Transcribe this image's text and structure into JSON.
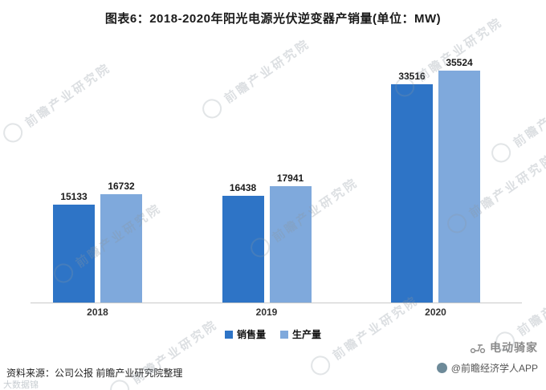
{
  "title": "图表6：2018-2020年阳光电源光伏逆变器产销量(单位：MW)",
  "chart_data": {
    "type": "bar",
    "title": "图表6：2018-2020年阳光电源光伏逆变器产销量(单位：MW)",
    "unit": "MW",
    "categories": [
      "2018",
      "2019",
      "2020"
    ],
    "series": [
      {
        "name": "销售量",
        "color": "#2e74c6",
        "values": [
          15133,
          16438,
          33516
        ]
      },
      {
        "name": "生产量",
        "color": "#7fa9dc",
        "values": [
          16732,
          17941,
          35524
        ]
      }
    ],
    "xlabel": "",
    "ylabel": "",
    "ylim": [
      0,
      40000
    ],
    "grid": false,
    "value_labels": true,
    "legend_position": "bottom"
  },
  "watermark": {
    "text": "前瞻产业研究院"
  },
  "footer": {
    "source": "资料来源：公司公报 前瞻产业研究院整理",
    "brand_name": "电动骑家",
    "credit": "@前瞻经济学人APP",
    "corner_watermark": "大数据锦"
  }
}
